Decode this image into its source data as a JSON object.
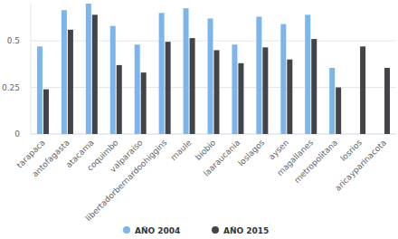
{
  "chart_data": {
    "type": "bar",
    "categories": [
      "tarapaca",
      "antofagasta",
      "atacama",
      "coquimbo",
      "valparaiso",
      "libertadorbernardoohiggins",
      "maule",
      "biobio",
      "laaraucania",
      "loslagos",
      "aysen",
      "magallanes",
      "metropolitana",
      "losrios",
      "aricayparinacota"
    ],
    "series": [
      {
        "name": "AÑO 2004",
        "color": "#7cb5ec",
        "values": [
          0.47,
          0.665,
          0.7,
          0.58,
          0.48,
          0.65,
          0.675,
          0.62,
          0.48,
          0.63,
          0.59,
          0.64,
          0.355,
          null,
          null
        ]
      },
      {
        "name": "AÑO 2015",
        "color": "#434348",
        "values": [
          0.24,
          0.56,
          0.64,
          0.37,
          0.33,
          0.495,
          0.515,
          0.45,
          0.38,
          0.465,
          0.4,
          0.51,
          0.25,
          0.47,
          0.355
        ]
      }
    ],
    "ylim": [
      0,
      0.7
    ],
    "yticks": [
      0,
      0.25,
      0.5
    ],
    "grid": true,
    "legend": "bottom"
  }
}
